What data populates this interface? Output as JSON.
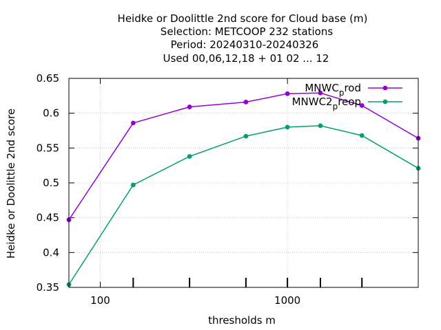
{
  "chart_data": {
    "type": "line",
    "title_lines": [
      "Heidke or Doolittle 2nd score  for Cloud base (m)",
      "Selection: METCOOP    232 stations",
      "Period: 20240310-20240326",
      "Used  00,06,12,18 + 01 02 ... 12"
    ],
    "xlabel": "thresholds m",
    "ylabel": "Heidke or Doolittle 2nd score",
    "xscale": "log",
    "xlim": [
      68,
      5000
    ],
    "ylim": [
      0.35,
      0.65
    ],
    "x_tick_labels": [
      {
        "value": 100,
        "label": "100"
      },
      {
        "value": 1000,
        "label": "1000"
      }
    ],
    "y_tick_labels": [
      {
        "value": 0.35,
        "label": "0.35"
      },
      {
        "value": 0.4,
        "label": "0.4"
      },
      {
        "value": 0.45,
        "label": "0.45"
      },
      {
        "value": 0.5,
        "label": "0.5"
      },
      {
        "value": 0.55,
        "label": "0.55"
      },
      {
        "value": 0.6,
        "label": "0.6"
      },
      {
        "value": 0.65,
        "label": "0.65"
      }
    ],
    "grid": true,
    "legend_position": "top-right",
    "x": [
      68,
      150,
      300,
      600,
      1000,
      1500,
      2500,
      5000
    ],
    "series": [
      {
        "name": "MNWC_prod",
        "legend_main": "MNWC",
        "legend_sub": "p",
        "legend_rest": "rod",
        "color": "#9400d3",
        "values": [
          0.447,
          0.586,
          0.609,
          0.616,
          0.628,
          0.629,
          0.611,
          0.564
        ]
      },
      {
        "name": "MNWC2_preop",
        "legend_main": "MNWC2",
        "legend_sub": "p",
        "legend_rest": "reop",
        "color": "#009e73",
        "values": [
          0.354,
          0.497,
          0.538,
          0.567,
          0.58,
          0.582,
          0.568,
          0.521
        ]
      }
    ]
  }
}
